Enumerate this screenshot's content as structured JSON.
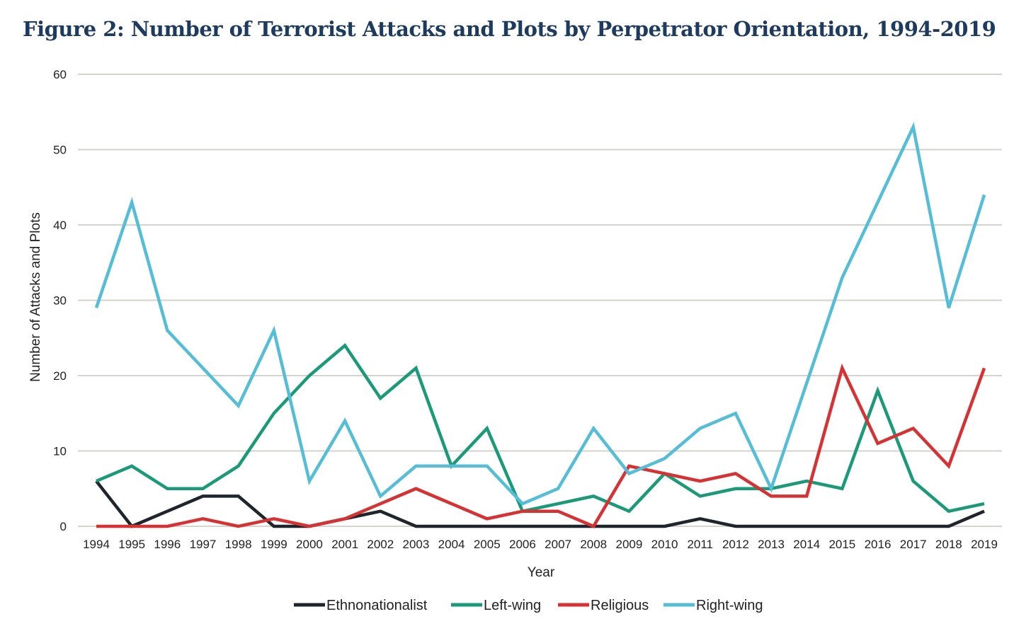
{
  "title": "Figure 2: Number of Terrorist Attacks and Plots by Perpetrator Orientation, 1994-2019",
  "chart_data": {
    "type": "line",
    "title": "Figure 2: Number of Terrorist Attacks and Plots by Perpetrator Orientation, 1994-2019",
    "xlabel": "Year",
    "ylabel": "Number of Attacks and Plots",
    "ylim": [
      0,
      60
    ],
    "yticks": [
      0,
      10,
      20,
      30,
      40,
      50,
      60
    ],
    "grid": true,
    "legend_position": "bottom",
    "x": [
      "1994",
      "1995",
      "1996",
      "1997",
      "1998",
      "1999",
      "2000",
      "2001",
      "2002",
      "2003",
      "2004",
      "2005",
      "2006",
      "2007",
      "2008",
      "2009",
      "2010",
      "2011",
      "2012",
      "2013",
      "2014",
      "2015",
      "2016",
      "2017",
      "2018",
      "2019"
    ],
    "series": [
      {
        "name": "Ethnonationalist",
        "color": "#1f252d",
        "values": [
          6,
          0,
          2,
          4,
          4,
          0,
          0,
          1,
          2,
          0,
          0,
          0,
          0,
          0,
          0,
          0,
          0,
          1,
          0,
          0,
          0,
          0,
          0,
          0,
          0,
          2
        ]
      },
      {
        "name": "Left-wing",
        "color": "#1a9a78",
        "values": [
          6,
          8,
          5,
          5,
          8,
          15,
          20,
          24,
          17,
          21,
          8,
          13,
          2,
          3,
          4,
          2,
          7,
          4,
          5,
          5,
          6,
          5,
          18,
          6,
          2,
          3
        ]
      },
      {
        "name": "Religious",
        "color": "#d63233",
        "values": [
          0,
          0,
          0,
          1,
          0,
          1,
          0,
          1,
          3,
          5,
          3,
          1,
          2,
          2,
          0,
          8,
          7,
          6,
          7,
          4,
          4,
          21,
          11,
          13,
          8,
          21
        ]
      },
      {
        "name": "Right-wing",
        "color": "#55bdd6",
        "values": [
          29,
          43,
          26,
          21,
          16,
          26,
          6,
          14,
          4,
          8,
          8,
          8,
          3,
          5,
          13,
          7,
          9,
          13,
          15,
          5,
          19,
          33,
          43,
          53,
          29,
          44
        ]
      }
    ]
  }
}
